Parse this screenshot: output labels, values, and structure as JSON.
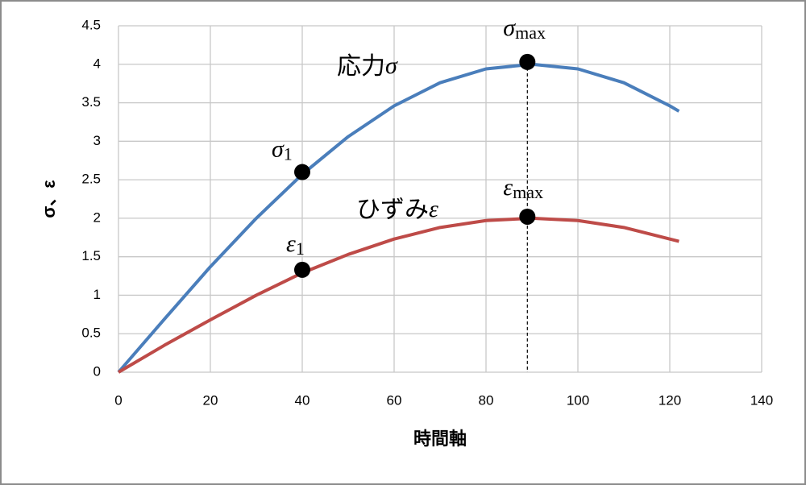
{
  "chart_data": {
    "type": "line",
    "x_label": "時間軸",
    "y_label": "σ、ε",
    "x": [
      0,
      10,
      20,
      30,
      40,
      50,
      60,
      70,
      80,
      90,
      100,
      110,
      120,
      122
    ],
    "series": [
      {
        "name": "応力",
        "symbol": "σ",
        "color": "#4a7ebb",
        "values": [
          0,
          0.69,
          1.37,
          2.0,
          2.57,
          3.06,
          3.46,
          3.76,
          3.94,
          4.0,
          3.94,
          3.76,
          3.46,
          3.39
        ]
      },
      {
        "name": "ひずみ",
        "symbol": "ε",
        "color": "#be4b48",
        "values": [
          0,
          0.35,
          0.68,
          1.0,
          1.29,
          1.53,
          1.73,
          1.88,
          1.97,
          2.0,
          1.97,
          1.88,
          1.73,
          1.7
        ]
      }
    ],
    "points": [
      {
        "symbol": "σ",
        "sub": "1",
        "x": 40,
        "y": 2.6
      },
      {
        "symbol": "σ",
        "sub": "max",
        "x": 89,
        "y": 4.03
      },
      {
        "symbol": "ε",
        "sub": "1",
        "x": 40,
        "y": 1.33
      },
      {
        "symbol": "ε",
        "sub": "max",
        "x": 89,
        "y": 2.02
      }
    ],
    "xlim": [
      0,
      140
    ],
    "xticks": [
      0,
      20,
      40,
      60,
      80,
      100,
      120,
      140
    ],
    "ylim": [
      0,
      4.5
    ],
    "yticks": [
      0,
      0.5,
      1,
      1.5,
      2,
      2.5,
      3,
      3.5,
      4,
      4.5
    ],
    "grid": true
  }
}
